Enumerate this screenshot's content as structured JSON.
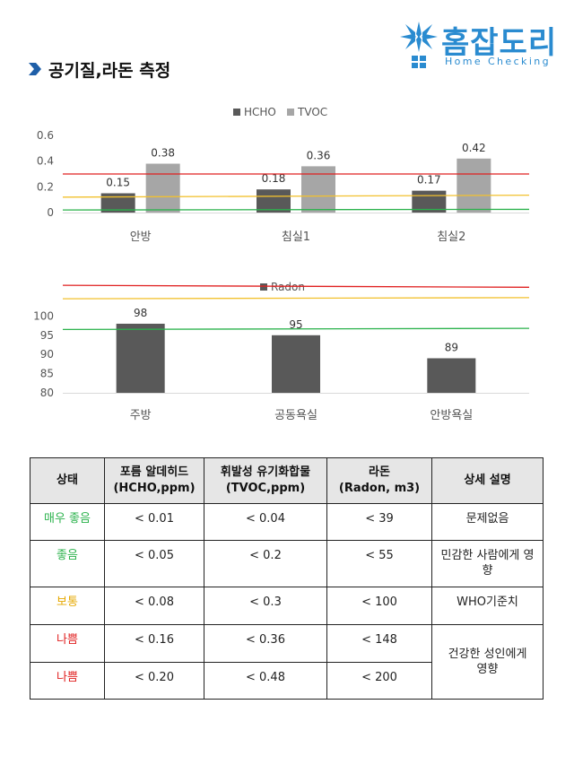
{
  "brand": {
    "name_ko": "홈잡도리",
    "name_en": "Home Checking",
    "color": "#2a8bd0"
  },
  "header": {
    "title": "공기질,라돈 측정",
    "arrow_color": "#1f5fa8"
  },
  "chart_data": [
    {
      "type": "bar",
      "categories": [
        "안방",
        "침실1",
        "침실2"
      ],
      "series": [
        {
          "name": "HCHO",
          "values": [
            0.15,
            0.18,
            0.17
          ],
          "color": "#595959"
        },
        {
          "name": "TVOC",
          "values": [
            0.38,
            0.36,
            0.42
          ],
          "color": "#a6a6a6"
        }
      ],
      "data_labels": [
        [
          "0.15",
          "0.18",
          "0.17"
        ],
        [
          "0.38",
          "0.36",
          "0.42"
        ]
      ],
      "ylim": [
        0,
        0.6
      ],
      "yticks": [
        "0",
        "0.2",
        "0.4",
        "0.6"
      ],
      "ytick_values": [
        0,
        0.2,
        0.4,
        0.6
      ],
      "reference_lines": [
        {
          "value": 0.3,
          "value_end": 0.3,
          "color": "#e02020"
        },
        {
          "value": 0.12,
          "value_end": 0.135,
          "color": "#f2c12e"
        },
        {
          "value": 0.02,
          "value_end": 0.025,
          "color": "#2bb24c"
        }
      ],
      "grid": false,
      "legend": "top-center"
    },
    {
      "type": "bar",
      "categories": [
        "주방",
        "공동욕실",
        "안방욕실"
      ],
      "series": [
        {
          "name": "Radon",
          "values": [
            98,
            95,
            89
          ],
          "color": "#595959"
        }
      ],
      "data_labels": [
        [
          "98",
          "95",
          "89"
        ]
      ],
      "ylim": [
        80,
        105
      ],
      "yticks": [
        "80",
        "85",
        "90",
        "95",
        "100"
      ],
      "ytick_values": [
        80,
        85,
        90,
        95,
        100
      ],
      "reference_lines": [
        {
          "value": 108,
          "value_end": 107.5,
          "color": "#e02020"
        },
        {
          "value": 104.5,
          "value_end": 104.8,
          "color": "#f2c12e"
        },
        {
          "value": 96.5,
          "value_end": 96.8,
          "color": "#2bb24c"
        }
      ],
      "grid": false,
      "legend": "top-center"
    }
  ],
  "table": {
    "headers": [
      [
        "상태"
      ],
      [
        "포름 알데히드",
        "(HCHO,ppm)"
      ],
      [
        "휘발성 유기화합물",
        "(TVOC,ppm)"
      ],
      [
        "라돈",
        "(Radon, m3)"
      ],
      [
        "상세 설명"
      ]
    ],
    "rows": [
      {
        "status": "매우 좋음",
        "color": "#2bb24c",
        "hcho": "< 0.01",
        "tvoc": "< 0.04",
        "radon": "< 39",
        "desc": "문제없음"
      },
      {
        "status": "좋음",
        "color": "#2bb24c",
        "hcho": "< 0.05",
        "tvoc": "< 0.2",
        "radon": "< 55",
        "desc": "민감한 사람에게 영향"
      },
      {
        "status": "보통",
        "color": "#e6a800",
        "hcho": "< 0.08",
        "tvoc": "< 0.3",
        "radon": "< 100",
        "desc": "WHO기준치"
      },
      {
        "status": "나쁨",
        "color": "#e02020",
        "hcho": "< 0.16",
        "tvoc": "< 0.36",
        "radon": "< 148",
        "desc": "건강한 성인에게 영향"
      },
      {
        "status": "나쁨",
        "color": "#e02020",
        "hcho": "< 0.20",
        "tvoc": "< 0.48",
        "radon": "< 200",
        "desc": ""
      }
    ]
  }
}
